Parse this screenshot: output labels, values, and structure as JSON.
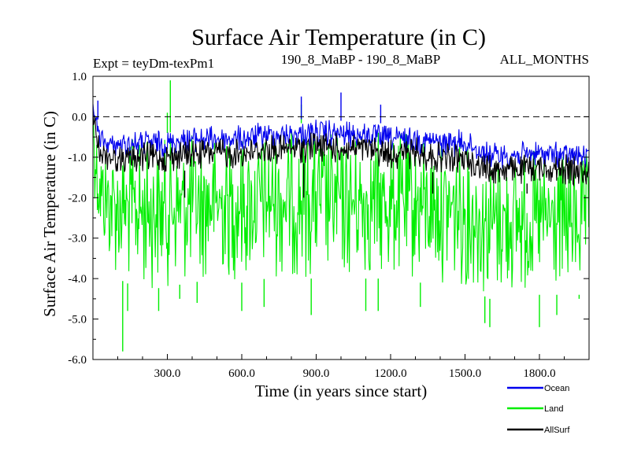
{
  "chart_data": {
    "type": "line",
    "title": "Surface Air Temperature (in C)",
    "subtitle_left": "Expt = teyDm-texPm1",
    "subtitle_center": "190_8_MaBP - 190_8_MaBP",
    "subtitle_right": "ALL_MONTHS",
    "xlabel": "Time (in years since start)",
    "ylabel": "Surface Air Temperature (in C)",
    "xlim": [
      0,
      2000
    ],
    "ylim": [
      -6.0,
      1.0
    ],
    "xticks": [
      300,
      600,
      900,
      1200,
      1500,
      1800
    ],
    "xtick_labels": [
      "300.0",
      "600.0",
      "900.0",
      "1200.0",
      "1500.0",
      "1800.0"
    ],
    "yticks": [
      1.0,
      0.0,
      -1.0,
      -2.0,
      -3.0,
      -4.0,
      -5.0,
      -6.0
    ],
    "ytick_labels": [
      "1.0",
      "0.0",
      "-1.0",
      "-2.0",
      "-3.0",
      "-4.0",
      "-5.0",
      "-6.0"
    ],
    "reference_line": {
      "y": 0.0,
      "style": "dashed"
    },
    "series": [
      {
        "name": "Land",
        "color": "#00ee00",
        "x": [
          0,
          10,
          25,
          50,
          100,
          200,
          300,
          400,
          500,
          600,
          700,
          800,
          900,
          1000,
          1100,
          1200,
          1300,
          1400,
          1500,
          1600,
          1700,
          1800,
          1900,
          2000
        ],
        "upper": [
          0.9,
          0.2,
          -0.4,
          -0.4,
          -0.5,
          -0.4,
          -0.4,
          -0.3,
          -0.3,
          -0.3,
          -0.2,
          -0.2,
          -0.1,
          -0.3,
          -0.2,
          -0.3,
          -0.3,
          -0.4,
          -0.5,
          -0.8,
          -0.7,
          -0.8,
          -0.8,
          -0.9
        ],
        "lower": [
          -1.2,
          -2.3,
          -3.2,
          -3.6,
          -4.0,
          -4.3,
          -4.2,
          -4.1,
          -4.0,
          -4.1,
          -4.0,
          -4.0,
          -4.0,
          -4.1,
          -4.0,
          -4.0,
          -4.1,
          -4.1,
          -4.2,
          -4.5,
          -4.4,
          -4.4,
          -4.4,
          -4.4
        ],
        "peaks": [
          [
            120,
            -5.8
          ],
          [
            140,
            -4.8
          ],
          [
            265,
            -4.8
          ],
          [
            300,
            0.1
          ],
          [
            312,
            0.9
          ],
          [
            350,
            -4.5
          ],
          [
            420,
            -4.6
          ],
          [
            600,
            -4.8
          ],
          [
            690,
            -4.7
          ],
          [
            840,
            0.3
          ],
          [
            880,
            -4.9
          ],
          [
            1100,
            -4.8
          ],
          [
            1150,
            -4.8
          ],
          [
            1320,
            -4.7
          ],
          [
            1580,
            -5.1
          ],
          [
            1600,
            -5.2
          ],
          [
            1800,
            -5.2
          ],
          [
            1870,
            -4.9
          ],
          [
            1960,
            -4.5
          ]
        ]
      },
      {
        "name": "Ocean",
        "color": "#0000ee",
        "x": [
          0,
          10,
          25,
          50,
          100,
          200,
          300,
          400,
          500,
          600,
          700,
          800,
          900,
          1000,
          1100,
          1200,
          1300,
          1400,
          1500,
          1600,
          1700,
          1800,
          1900,
          2000
        ],
        "upper": [
          0.5,
          0.2,
          -0.2,
          -0.4,
          -0.4,
          -0.3,
          -0.3,
          -0.2,
          -0.2,
          -0.2,
          -0.1,
          -0.1,
          0.0,
          -0.1,
          -0.1,
          -0.2,
          -0.2,
          -0.3,
          -0.3,
          -0.6,
          -0.6,
          -0.6,
          -0.6,
          -0.7
        ],
        "lower": [
          0.1,
          -0.3,
          -0.8,
          -0.9,
          -1.0,
          -1.0,
          -1.0,
          -0.9,
          -0.9,
          -0.9,
          -0.8,
          -0.8,
          -0.8,
          -0.8,
          -0.8,
          -0.9,
          -0.9,
          -1.0,
          -1.0,
          -1.3,
          -1.3,
          -1.2,
          -1.3,
          -1.3
        ],
        "peaks": [
          [
            20,
            0.4
          ],
          [
            840,
            0.5
          ],
          [
            1000,
            0.6
          ],
          [
            1160,
            0.3
          ]
        ]
      },
      {
        "name": "AllSurf",
        "color": "#000000",
        "x": [
          0,
          10,
          25,
          50,
          100,
          200,
          300,
          400,
          500,
          600,
          700,
          800,
          900,
          1000,
          1100,
          1200,
          1300,
          1400,
          1500,
          1600,
          1700,
          1800,
          1900,
          2000
        ],
        "upper": [
          0.3,
          0.0,
          -0.5,
          -0.6,
          -0.7,
          -0.6,
          -0.6,
          -0.5,
          -0.5,
          -0.5,
          -0.4,
          -0.4,
          -0.3,
          -0.4,
          -0.4,
          -0.5,
          -0.5,
          -0.6,
          -0.7,
          -0.9,
          -0.9,
          -0.9,
          -0.9,
          -1.0
        ],
        "lower": [
          -0.1,
          -0.6,
          -1.1,
          -1.3,
          -1.4,
          -1.4,
          -1.4,
          -1.3,
          -1.3,
          -1.3,
          -1.2,
          -1.2,
          -1.1,
          -1.2,
          -1.2,
          -1.3,
          -1.3,
          -1.4,
          -1.4,
          -1.7,
          -1.7,
          -1.6,
          -1.7,
          -1.7
        ],
        "peaks": [
          [
            370,
            -2.0
          ],
          [
            850,
            -2.0
          ],
          [
            1370,
            -1.9
          ],
          [
            1750,
            -1.9
          ]
        ]
      }
    ],
    "legend": {
      "placement": "bottom-right",
      "entries": [
        "Ocean",
        "Land",
        "AllSurf"
      ]
    }
  }
}
